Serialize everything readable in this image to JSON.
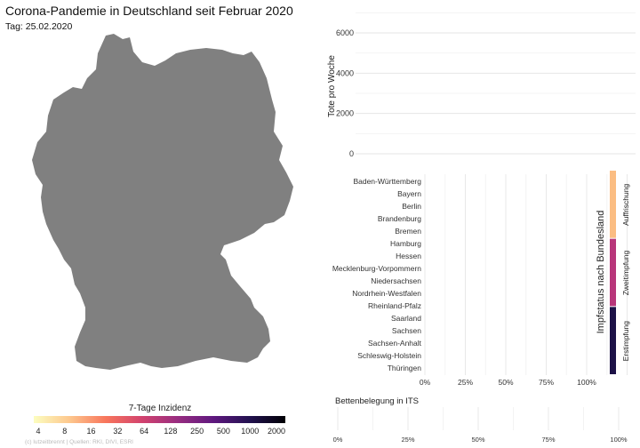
{
  "title": "Corona-Pandemie in Deutschland seit Februar 2020",
  "subtitle": "Tag: 25.02.2020",
  "credit": "(c) lutzeitbrennt | Quellen: RKI, DIVI, ESRI",
  "map": {
    "fill": "#808080",
    "legend": {
      "title": "7-Tage Inzidenz",
      "ticks": [
        "4",
        "8",
        "16",
        "32",
        "64",
        "128",
        "250",
        "500",
        "1000",
        "2000"
      ],
      "colors": [
        "#fcfdbf",
        "#fdc78d",
        "#f8765c",
        "#d3436e",
        "#982d80",
        "#5f187f",
        "#221150",
        "#000004"
      ]
    }
  },
  "chart_data": [
    {
      "type": "line",
      "ylabel": "Tote pro Woche",
      "y_ticks": [
        "0",
        "2000",
        "4000",
        "6000"
      ],
      "ylim": [
        0,
        6000
      ],
      "series": [],
      "grid": true
    },
    {
      "type": "bar",
      "orientation": "horizontal",
      "categories": [
        "Baden-Württemberg",
        "Bayern",
        "Berlin",
        "Brandenburg",
        "Bremen",
        "Hamburg",
        "Hessen",
        "Mecklenburg-Vorpommern",
        "Niedersachsen",
        "Nordrhein-Westfalen",
        "Rheinland-Pfalz",
        "Saarland",
        "Sachsen",
        "Sachsen-Anhalt",
        "Schleswig-Holstein",
        "Thüringen"
      ],
      "x_ticks": [
        "0%",
        "25%",
        "50%",
        "75%",
        "100%"
      ],
      "xlim": [
        0,
        100
      ],
      "values": [
        0,
        0,
        0,
        0,
        0,
        0,
        0,
        0,
        0,
        0,
        0,
        0,
        0,
        0,
        0,
        0
      ],
      "legend_title": "Impfstatus nach Bundesland",
      "legend": [
        {
          "name": "Auffrischung",
          "color": "#fbbd82"
        },
        {
          "name": "Zweitimpfung",
          "color": "#b8367a"
        },
        {
          "name": "Erstimpfung",
          "color": "#1d1147"
        }
      ]
    },
    {
      "type": "bar",
      "orientation": "horizontal",
      "title": "Bettenbelegung in ITS",
      "x_ticks": [
        "0%",
        "25%",
        "50%",
        "75%",
        "100%"
      ],
      "xlim": [
        0,
        100
      ],
      "values": []
    }
  ]
}
